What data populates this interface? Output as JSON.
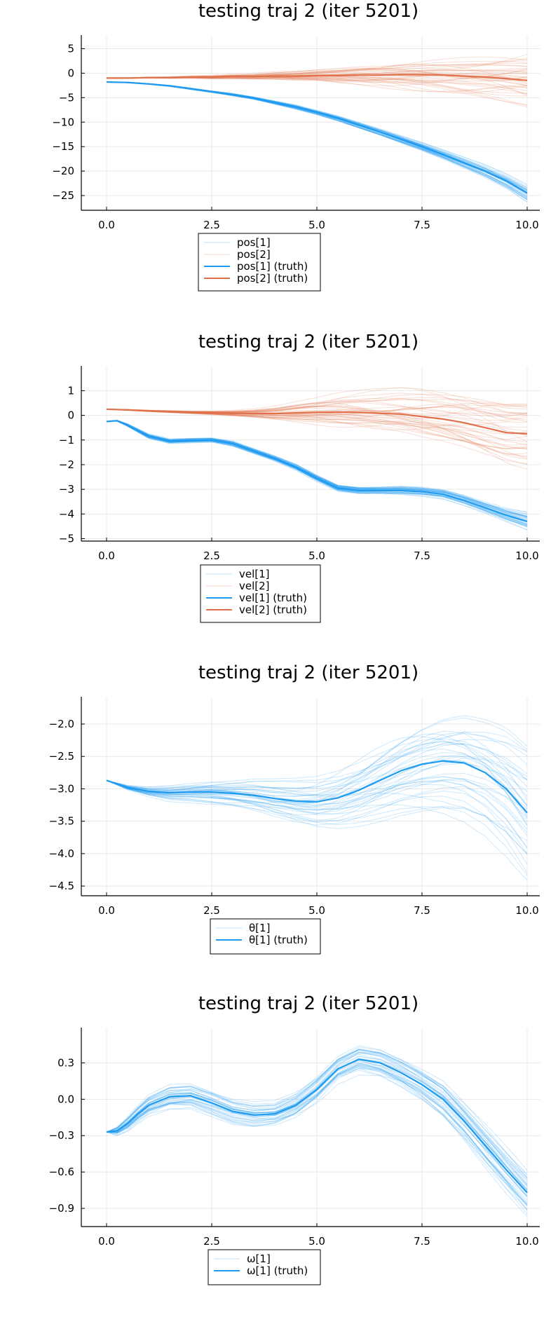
{
  "colors": {
    "series1": "#1e9bf0",
    "series2": "#e0714a",
    "grid": "#e8e8e8",
    "axis": "#000000"
  },
  "chart_data": [
    {
      "type": "line",
      "title": "testing traj 2 (iter 5201)",
      "xlabel": "",
      "ylabel": "",
      "xlim": [
        -0.6,
        10.3
      ],
      "ylim": [
        -28,
        7.5
      ],
      "xticks": [
        0,
        2.5,
        5,
        7.5,
        10
      ],
      "xtick_labels": [
        "0.0",
        "2.5",
        "5.0",
        "7.5",
        "10.0"
      ],
      "yticks": [
        5,
        0,
        -5,
        -10,
        -15,
        -20,
        -25
      ],
      "ytick_labels": [
        "5",
        "0",
        "−5",
        "−10",
        "−15",
        "−20",
        "−25"
      ],
      "grid": true,
      "legend_position": "bottom",
      "legend": [
        "pos[1]",
        "pos[2]",
        "pos[1] (truth)",
        "pos[2] (truth)"
      ],
      "series": [
        {
          "name": "pos[1] (truth)",
          "color": "#1e9bf0",
          "x": [
            0,
            0.5,
            1,
            1.5,
            2,
            2.5,
            3,
            3.5,
            4,
            4.5,
            5,
            5.5,
            6,
            6.5,
            7,
            7.5,
            8,
            8.5,
            9,
            9.5,
            10
          ],
          "y": [
            -1.8,
            -1.9,
            -2.2,
            -2.6,
            -3.2,
            -3.8,
            -4.4,
            -5.1,
            -6.0,
            -6.9,
            -8.0,
            -9.2,
            -10.6,
            -12.0,
            -13.5,
            -15.0,
            -16.6,
            -18.3,
            -20.0,
            -22.0,
            -24.5
          ],
          "spread": [
            0,
            0.1,
            0.1,
            0.15,
            0.2,
            0.2,
            0.3,
            0.3,
            0.4,
            0.5,
            0.5,
            0.6,
            0.7,
            0.8,
            0.9,
            1.0,
            1.1,
            1.3,
            1.5,
            1.7,
            2.0
          ]
        },
        {
          "name": "pos[2] (truth)",
          "color": "#e0714a",
          "x": [
            0,
            0.5,
            1,
            1.5,
            2,
            2.5,
            3,
            3.5,
            4,
            4.5,
            5,
            5.5,
            6,
            6.5,
            7,
            7.5,
            8,
            8.5,
            9,
            9.5,
            10
          ],
          "y": [
            -1.0,
            -1.0,
            -0.9,
            -0.9,
            -0.8,
            -0.8,
            -0.7,
            -0.7,
            -0.6,
            -0.6,
            -0.5,
            -0.5,
            -0.4,
            -0.4,
            -0.3,
            -0.3,
            -0.4,
            -0.6,
            -0.8,
            -1.1,
            -1.5
          ],
          "spread": [
            0,
            0.05,
            0.1,
            0.15,
            0.2,
            0.3,
            0.4,
            0.5,
            0.7,
            0.9,
            1.1,
            1.4,
            1.7,
            2.0,
            2.4,
            2.8,
            3.2,
            3.7,
            4.2,
            4.8,
            5.5
          ]
        }
      ]
    },
    {
      "type": "line",
      "title": "testing traj 2 (iter 5201)",
      "xlabel": "",
      "ylabel": "",
      "xlim": [
        -0.6,
        10.3
      ],
      "ylim": [
        -5.1,
        1.95
      ],
      "xticks": [
        0,
        2.5,
        5,
        7.5,
        10
      ],
      "xtick_labels": [
        "0.0",
        "2.5",
        "5.0",
        "7.5",
        "10.0"
      ],
      "yticks": [
        1,
        0,
        -1,
        -2,
        -3,
        -4,
        -5
      ],
      "ytick_labels": [
        "1",
        "0",
        "−1",
        "−2",
        "−3",
        "−4",
        "−5"
      ],
      "grid": true,
      "legend_position": "bottom",
      "legend": [
        "vel[1]",
        "vel[2]",
        "vel[1] (truth)",
        "vel[2] (truth)"
      ],
      "series": [
        {
          "name": "vel[1] (truth)",
          "color": "#1e9bf0",
          "x": [
            0,
            0.25,
            0.5,
            1,
            1.5,
            2,
            2.5,
            3,
            3.5,
            4,
            4.5,
            5,
            5.5,
            6,
            6.5,
            7,
            7.5,
            8,
            8.5,
            9,
            9.5,
            10
          ],
          "y": [
            -0.25,
            -0.22,
            -0.4,
            -0.85,
            -1.05,
            -1.02,
            -1.0,
            -1.15,
            -1.45,
            -1.75,
            -2.1,
            -2.55,
            -2.95,
            -3.05,
            -3.05,
            -3.05,
            -3.1,
            -3.2,
            -3.45,
            -3.75,
            -4.05,
            -4.3
          ],
          "spread": [
            0,
            0.02,
            0.05,
            0.08,
            0.08,
            0.08,
            0.08,
            0.1,
            0.1,
            0.1,
            0.12,
            0.12,
            0.12,
            0.12,
            0.12,
            0.14,
            0.15,
            0.16,
            0.18,
            0.2,
            0.25,
            0.35
          ]
        },
        {
          "name": "vel[2] (truth)",
          "color": "#e0714a",
          "x": [
            0,
            0.5,
            1,
            1.5,
            2,
            2.5,
            3,
            3.5,
            4,
            4.5,
            5,
            5.5,
            6,
            6.5,
            7,
            7.5,
            8,
            8.5,
            9,
            9.5,
            10
          ],
          "y": [
            0.25,
            0.22,
            0.18,
            0.15,
            0.12,
            0.1,
            0.08,
            0.07,
            0.07,
            0.1,
            0.12,
            0.13,
            0.12,
            0.08,
            0.05,
            -0.05,
            -0.15,
            -0.3,
            -0.5,
            -0.7,
            -0.75
          ],
          "spread": [
            0,
            0.02,
            0.03,
            0.04,
            0.05,
            0.07,
            0.1,
            0.15,
            0.22,
            0.32,
            0.42,
            0.55,
            0.65,
            0.75,
            0.85,
            0.95,
            1.0,
            1.05,
            1.1,
            1.15,
            1.2
          ]
        }
      ]
    },
    {
      "type": "line",
      "title": "testing traj 2 (iter 5201)",
      "xlabel": "",
      "ylabel": "",
      "xlim": [
        -0.6,
        10.3
      ],
      "ylim": [
        -4.65,
        -1.6
      ],
      "xticks": [
        0,
        2.5,
        5,
        7.5,
        10
      ],
      "xtick_labels": [
        "0.0",
        "2.5",
        "5.0",
        "7.5",
        "10.0"
      ],
      "yticks": [
        -2.0,
        -2.5,
        -3.0,
        -3.5,
        -4.0,
        -4.5
      ],
      "ytick_labels": [
        "−2.0",
        "−2.5",
        "−3.0",
        "−3.5",
        "−4.0",
        "−4.5"
      ],
      "grid": true,
      "legend_position": "bottom",
      "legend": [
        "θ[1]",
        "θ[1] (truth)"
      ],
      "series": [
        {
          "name": "θ[1] (truth)",
          "color": "#1e9bf0",
          "x": [
            0,
            0.5,
            1,
            1.5,
            2,
            2.5,
            3,
            3.5,
            4,
            4.5,
            5,
            5.5,
            6,
            6.5,
            7,
            7.5,
            8,
            8.5,
            9,
            9.5,
            10
          ],
          "y": [
            -2.87,
            -2.98,
            -3.04,
            -3.06,
            -3.05,
            -3.05,
            -3.07,
            -3.1,
            -3.15,
            -3.19,
            -3.2,
            -3.14,
            -3.02,
            -2.87,
            -2.72,
            -2.62,
            -2.57,
            -2.6,
            -2.75,
            -3.0,
            -3.37
          ],
          "spread": [
            0,
            0.03,
            0.06,
            0.1,
            0.13,
            0.17,
            0.2,
            0.24,
            0.28,
            0.32,
            0.36,
            0.4,
            0.44,
            0.48,
            0.52,
            0.56,
            0.6,
            0.65,
            0.72,
            0.85,
            1.0
          ]
        }
      ]
    },
    {
      "type": "line",
      "title": "testing traj 2 (iter 5201)",
      "xlabel": "",
      "ylabel": "",
      "xlim": [
        -0.6,
        10.3
      ],
      "ylim": [
        -1.05,
        0.58
      ],
      "xticks": [
        0,
        2.5,
        5,
        7.5,
        10
      ],
      "xtick_labels": [
        "0.0",
        "2.5",
        "5.0",
        "7.5",
        "10.0"
      ],
      "yticks": [
        0.3,
        0.0,
        -0.3,
        -0.6,
        -0.9
      ],
      "ytick_labels": [
        "0.3",
        "0.0",
        "−0.3",
        "−0.6",
        "−0.9"
      ],
      "grid": true,
      "legend_position": "bottom",
      "legend": [
        "ω[1]",
        "ω[1] (truth)"
      ],
      "series": [
        {
          "name": "ω[1] (truth)",
          "color": "#1e9bf0",
          "x": [
            0,
            0.25,
            0.5,
            0.75,
            1,
            1.5,
            2,
            2.5,
            3,
            3.5,
            4,
            4.5,
            5,
            5.5,
            6,
            6.5,
            7,
            7.5,
            8,
            8.5,
            9,
            9.5,
            10
          ],
          "y": [
            -0.27,
            -0.26,
            -0.2,
            -0.12,
            -0.05,
            0.02,
            0.03,
            -0.03,
            -0.1,
            -0.13,
            -0.12,
            -0.05,
            0.08,
            0.25,
            0.33,
            0.3,
            0.22,
            0.12,
            0.0,
            -0.18,
            -0.38,
            -0.58,
            -0.77
          ],
          "spread": [
            0,
            0.03,
            0.05,
            0.06,
            0.07,
            0.08,
            0.08,
            0.08,
            0.08,
            0.08,
            0.08,
            0.09,
            0.1,
            0.1,
            0.11,
            0.11,
            0.11,
            0.11,
            0.12,
            0.12,
            0.13,
            0.14,
            0.15
          ]
        }
      ]
    }
  ]
}
